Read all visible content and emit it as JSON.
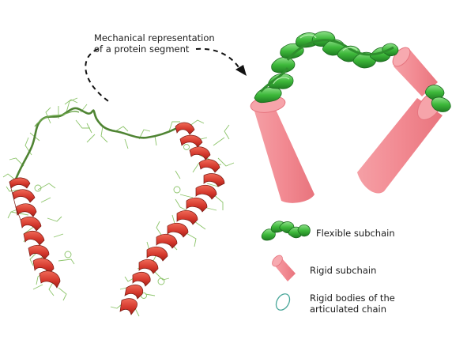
{
  "caption": {
    "line1": "Mechanical representation",
    "line2": "of a protein segment"
  },
  "legend": {
    "flexible": "Flexible subchain",
    "rigid": "Rigid subchain",
    "bodies_line1": "Rigid bodies of the",
    "bodies_line2": "articulated chain"
  },
  "colors": {
    "helix_red": "#d83a32",
    "coil_green": "#5a8f3a",
    "side_chain_green": "#8cc46a",
    "flexible_green": "#3bb23b",
    "rigid_pink": "#f2888f",
    "body_outline_teal": "#4aa79a"
  },
  "icons": [
    "protein-cartoon",
    "dashed-arrow",
    "flexible-ribbon",
    "rigid-cylinder",
    "rigid-body-ellipse"
  ]
}
